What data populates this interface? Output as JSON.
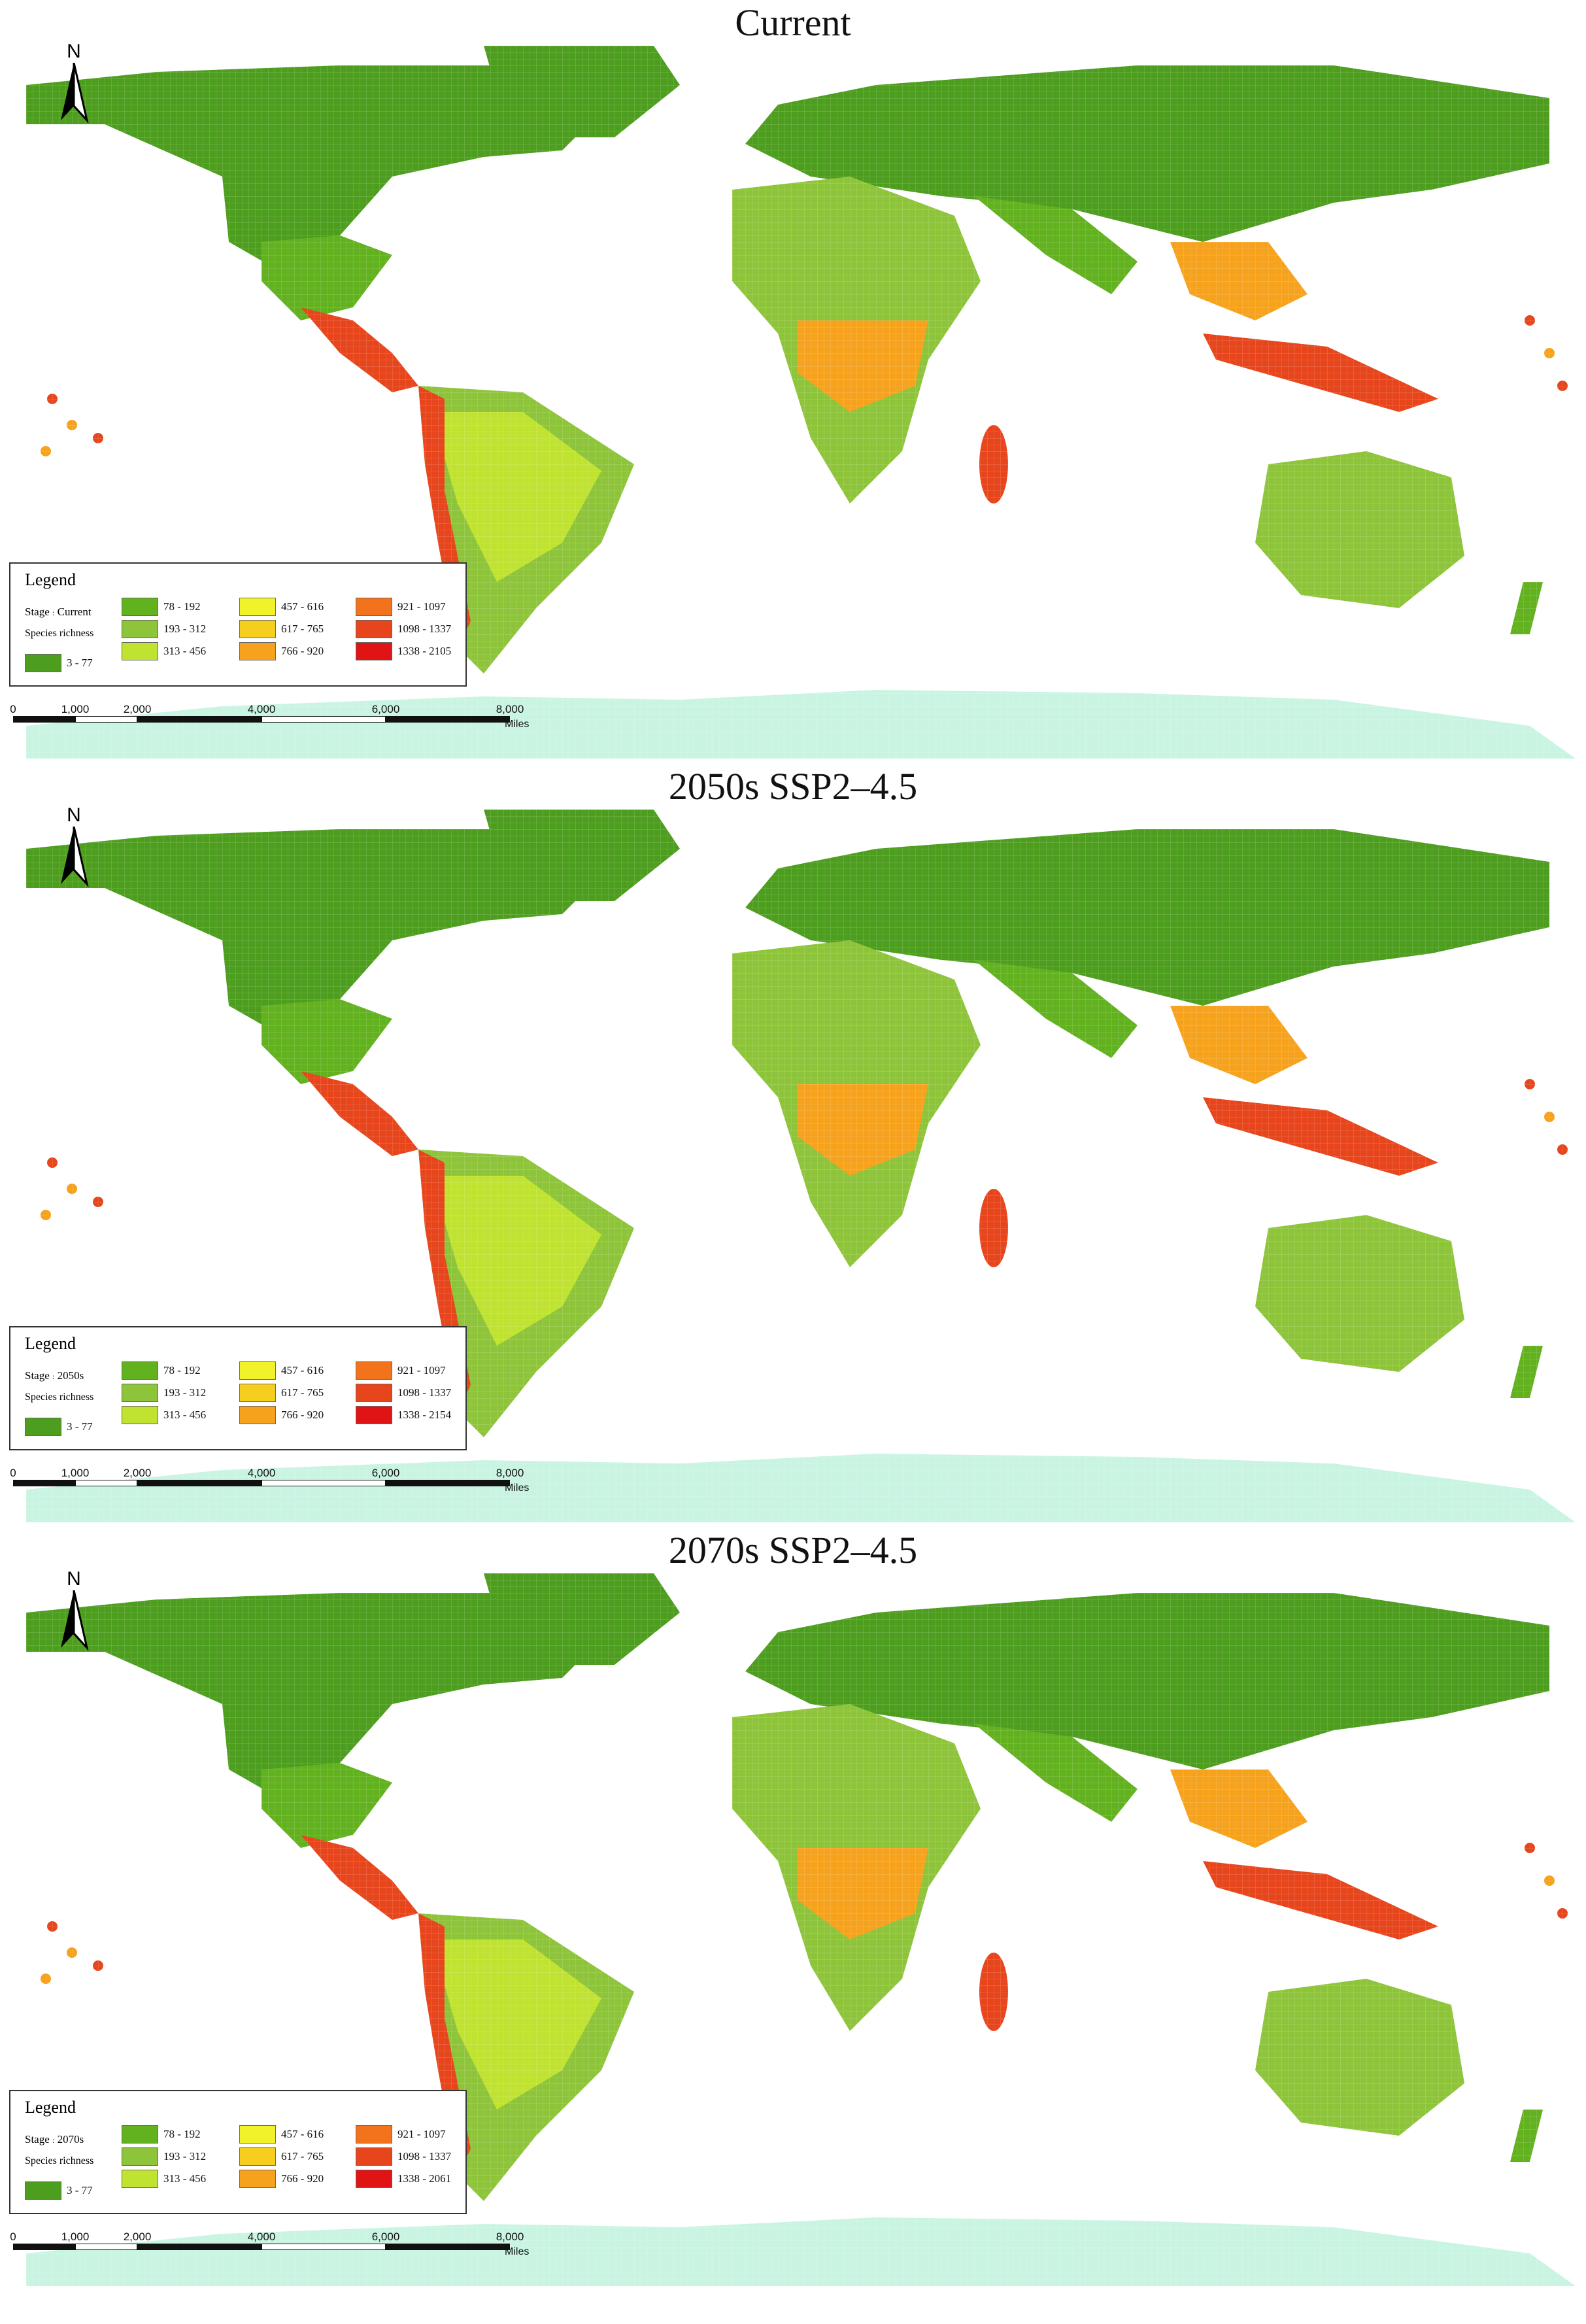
{
  "colors": {
    "c3_77": "#4d9e1e",
    "c78_192": "#62b11f",
    "c193_312": "#8dc43a",
    "c313_456": "#bfe330",
    "c457_616": "#f2f22a",
    "c617_765": "#f6cf1e",
    "c766_920": "#f6a21d",
    "c921_1097": "#f2731c",
    "c1098_1337": "#e7451c",
    "c1338_max": "#e01414",
    "antarctica": "#c9f4e2"
  },
  "north_label": "N",
  "scale": {
    "labels": [
      "0",
      "1,000",
      "2,000",
      "4,000",
      "6,000",
      "8,000"
    ],
    "unit": "Miles"
  },
  "panels": [
    {
      "title": "Current",
      "legend": {
        "title": "Legend",
        "stage": "Stage",
        "stage_value": "Current",
        "subtitle": "Species richness",
        "classes": [
          "3 - 77",
          "78 - 192",
          "193 - 312",
          "313 - 456",
          "457 - 616",
          "617 - 765",
          "766 - 920",
          "921 - 1097",
          "1098 - 1337",
          "1338 - 2105"
        ]
      }
    },
    {
      "title": "2050s SSP2–4.5",
      "legend": {
        "title": "Legend",
        "stage": "Stage",
        "stage_value": "2050s",
        "subtitle": "Species richness",
        "classes": [
          "3 - 77",
          "78 - 192",
          "193 - 312",
          "313 - 456",
          "457 - 616",
          "617 - 765",
          "766 - 920",
          "921 - 1097",
          "1098 - 1337",
          "1338 - 2154"
        ]
      }
    },
    {
      "title": "2070s SSP2–4.5",
      "legend": {
        "title": "Legend",
        "stage": "Stage",
        "stage_value": "2070s",
        "subtitle": "Species richness",
        "classes": [
          "3 - 77",
          "78 - 192",
          "193 - 312",
          "313 - 456",
          "457 - 616",
          "617 - 765",
          "766 - 920",
          "921 - 1097",
          "1098 - 1337",
          "1338 - 2061"
        ]
      }
    }
  ]
}
